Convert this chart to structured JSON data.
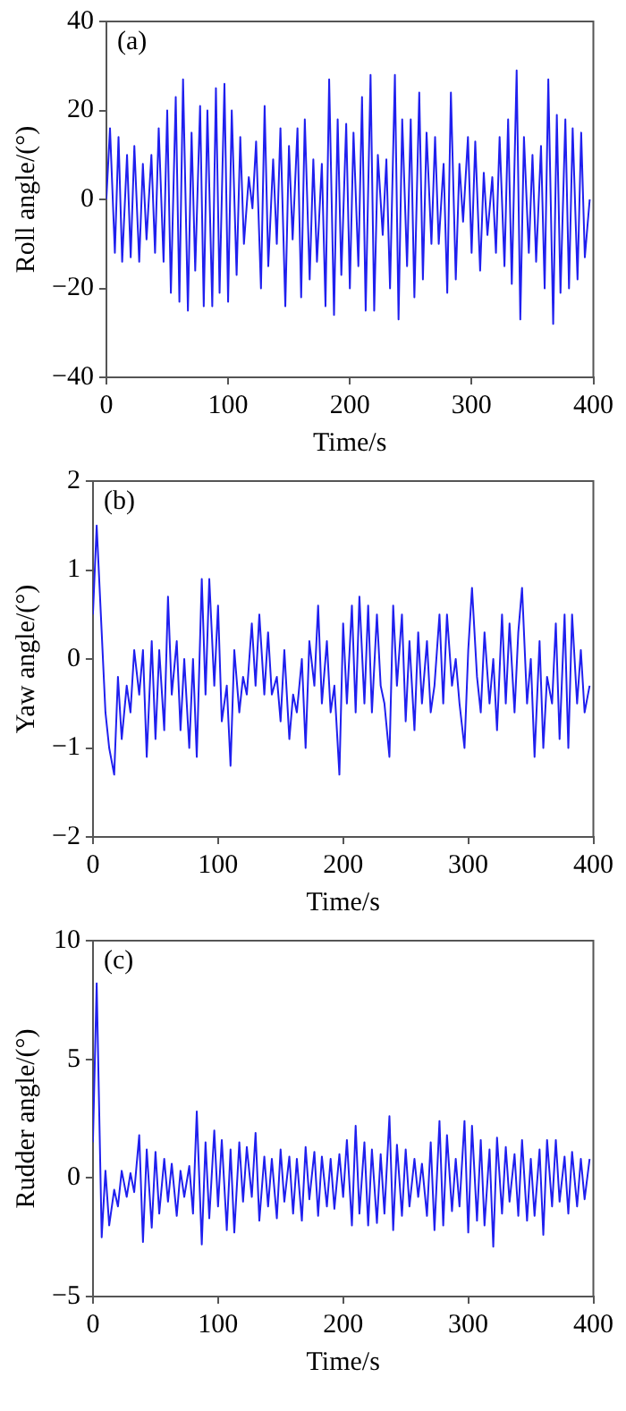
{
  "chart_data": [
    {
      "type": "line",
      "annotations": [
        "(a)"
      ],
      "xlabel": "Time/s",
      "ylabel": "Roll angle/(°)",
      "color": "#1f1fef",
      "marker": "none",
      "line_style": "solid",
      "grid": false,
      "xlim": [
        0,
        400
      ],
      "xticks": [
        0,
        100,
        200,
        300,
        400
      ],
      "ylim": [
        -40,
        40
      ],
      "yticks": [
        -40,
        -20,
        0,
        20,
        40
      ],
      "x": [
        0,
        3,
        7,
        10,
        13,
        17,
        20,
        23,
        27,
        30,
        33,
        37,
        40,
        43,
        47,
        50,
        53,
        57,
        60,
        63,
        67,
        70,
        73,
        77,
        80,
        83,
        87,
        90,
        93,
        97,
        100,
        103,
        107,
        110,
        113,
        117,
        120,
        123,
        127,
        130,
        133,
        137,
        140,
        143,
        147,
        150,
        153,
        157,
        160,
        163,
        167,
        170,
        173,
        177,
        180,
        183,
        187,
        190,
        193,
        197,
        200,
        203,
        207,
        210,
        213,
        217,
        220,
        223,
        227,
        230,
        233,
        237,
        240,
        243,
        247,
        250,
        253,
        257,
        260,
        263,
        267,
        270,
        273,
        277,
        280,
        283,
        287,
        290,
        293,
        297,
        300,
        303,
        307,
        310,
        313,
        317,
        320,
        323,
        327,
        330,
        333,
        337,
        340,
        343,
        347,
        350,
        353,
        357,
        360,
        363,
        367,
        370,
        373,
        377,
        380,
        383,
        387,
        390,
        393,
        397
      ],
      "values": [
        0,
        16,
        -12,
        14,
        -14,
        10,
        -13,
        12,
        -14,
        8,
        -9,
        10,
        -12,
        16,
        -14,
        20,
        -21,
        23,
        -23,
        27,
        -25,
        15,
        -16,
        21,
        -24,
        20,
        -24,
        25,
        -21,
        26,
        -23,
        20,
        -17,
        14,
        -10,
        5,
        -2,
        13,
        -20,
        21,
        -15,
        9,
        -10,
        16,
        -24,
        12,
        -9,
        16,
        -22,
        18,
        -18,
        9,
        -14,
        8,
        -24,
        27,
        -26,
        18,
        -17,
        17,
        -20,
        15,
        -15,
        23,
        -25,
        28,
        -25,
        10,
        -8,
        9,
        -20,
        28,
        -27,
        18,
        -15,
        18,
        -22,
        24,
        -18,
        15,
        -10,
        14,
        -10,
        8,
        -21,
        24,
        -18,
        8,
        -5,
        14,
        -12,
        13,
        -16,
        6,
        -8,
        5,
        -12,
        14,
        -15,
        18,
        -19,
        29,
        -27,
        14,
        -12,
        10,
        -14,
        12,
        -20,
        27,
        -28,
        19,
        -21,
        18,
        -20,
        16,
        -18,
        15,
        -13,
        0
      ]
    },
    {
      "type": "line",
      "annotations": [
        "(b)"
      ],
      "xlabel": "Time/s",
      "ylabel": "Yaw angle/(°)",
      "color": "#1f1fef",
      "marker": "none",
      "line_style": "solid",
      "grid": false,
      "xlim": [
        0,
        400
      ],
      "xticks": [
        0,
        100,
        200,
        300,
        400
      ],
      "ylim": [
        -2,
        2
      ],
      "yticks": [
        -2,
        -1,
        0,
        1,
        2
      ],
      "x": [
        0,
        3,
        7,
        10,
        13,
        17,
        20,
        23,
        27,
        30,
        33,
        37,
        40,
        43,
        47,
        50,
        53,
        57,
        60,
        63,
        67,
        70,
        73,
        77,
        80,
        83,
        87,
        90,
        93,
        97,
        100,
        103,
        107,
        110,
        113,
        117,
        120,
        123,
        127,
        130,
        133,
        137,
        140,
        143,
        147,
        150,
        153,
        157,
        160,
        163,
        167,
        170,
        173,
        177,
        180,
        183,
        187,
        190,
        193,
        197,
        200,
        203,
        207,
        210,
        213,
        217,
        220,
        223,
        227,
        230,
        233,
        237,
        240,
        243,
        247,
        250,
        253,
        257,
        260,
        263,
        267,
        270,
        273,
        277,
        280,
        283,
        287,
        290,
        293,
        297,
        300,
        303,
        307,
        310,
        313,
        317,
        320,
        323,
        327,
        330,
        333,
        337,
        340,
        343,
        347,
        350,
        353,
        357,
        360,
        363,
        367,
        370,
        373,
        377,
        380,
        383,
        387,
        390,
        393,
        397
      ],
      "values": [
        0.5,
        1.5,
        0.3,
        -0.6,
        -1.0,
        -1.3,
        -0.2,
        -0.9,
        -0.3,
        -0.6,
        0.1,
        -0.4,
        0.1,
        -1.1,
        0.2,
        -0.9,
        0.1,
        -0.8,
        0.7,
        -0.4,
        0.2,
        -0.8,
        0.0,
        -1.0,
        0.0,
        -1.1,
        0.9,
        -0.4,
        0.9,
        -0.3,
        0.6,
        -0.7,
        -0.3,
        -1.2,
        0.1,
        -0.6,
        -0.2,
        -0.4,
        0.4,
        -0.3,
        0.5,
        -0.4,
        0.3,
        -0.4,
        -0.2,
        -0.7,
        0.1,
        -0.9,
        -0.4,
        -0.6,
        0.0,
        -1.0,
        0.2,
        -0.3,
        0.6,
        -0.5,
        0.2,
        -0.6,
        -0.3,
        -1.3,
        0.4,
        -0.5,
        0.6,
        -0.6,
        0.7,
        -0.5,
        0.6,
        -0.6,
        0.5,
        -0.3,
        -0.5,
        -1.1,
        0.6,
        -0.3,
        0.5,
        -0.7,
        0.2,
        -0.8,
        0.3,
        -0.5,
        0.2,
        -0.6,
        -0.3,
        0.5,
        -0.5,
        0.5,
        -0.3,
        0.0,
        -0.5,
        -1.0,
        0.1,
        0.8,
        -0.2,
        -0.6,
        0.3,
        -0.5,
        0.0,
        -0.8,
        0.5,
        -0.5,
        0.4,
        -0.6,
        0.3,
        0.8,
        -0.5,
        0.0,
        -1.1,
        0.2,
        -1.0,
        -0.2,
        -0.5,
        0.4,
        -0.9,
        0.5,
        -1.0,
        0.5,
        -0.5,
        0.1,
        -0.6,
        -0.3
      ]
    },
    {
      "type": "line",
      "annotations": [
        "(c)"
      ],
      "xlabel": "Time/s",
      "ylabel": "Rudder angle/(°)",
      "color": "#1f1fef",
      "marker": "none",
      "line_style": "solid",
      "grid": false,
      "xlim": [
        0,
        400
      ],
      "xticks": [
        0,
        100,
        200,
        300,
        400
      ],
      "ylim": [
        -5,
        10
      ],
      "yticks": [
        -5,
        0,
        5,
        10
      ],
      "x": [
        0,
        3,
        7,
        10,
        13,
        17,
        20,
        23,
        27,
        30,
        33,
        37,
        40,
        43,
        47,
        50,
        53,
        57,
        60,
        63,
        67,
        70,
        73,
        77,
        80,
        83,
        87,
        90,
        93,
        97,
        100,
        103,
        107,
        110,
        113,
        117,
        120,
        123,
        127,
        130,
        133,
        137,
        140,
        143,
        147,
        150,
        153,
        157,
        160,
        163,
        167,
        170,
        173,
        177,
        180,
        183,
        187,
        190,
        193,
        197,
        200,
        203,
        207,
        210,
        213,
        217,
        220,
        223,
        227,
        230,
        233,
        237,
        240,
        243,
        247,
        250,
        253,
        257,
        260,
        263,
        267,
        270,
        273,
        277,
        280,
        283,
        287,
        290,
        293,
        297,
        300,
        303,
        307,
        310,
        313,
        317,
        320,
        323,
        327,
        330,
        333,
        337,
        340,
        343,
        347,
        350,
        353,
        357,
        360,
        363,
        367,
        370,
        373,
        377,
        380,
        383,
        387,
        390,
        393,
        397
      ],
      "values": [
        1.5,
        8.2,
        -2.5,
        0.3,
        -2.0,
        -0.5,
        -1.2,
        0.3,
        -0.8,
        0.2,
        -0.6,
        1.8,
        -2.7,
        1.2,
        -2.1,
        1.1,
        -1.5,
        0.8,
        -1.0,
        0.6,
        -1.6,
        0.3,
        -0.8,
        0.5,
        -1.5,
        2.8,
        -2.8,
        1.5,
        -1.7,
        2.0,
        -1.2,
        1.6,
        -2.2,
        1.2,
        -2.3,
        1.5,
        -1.0,
        1.3,
        -0.8,
        1.9,
        -1.8,
        0.9,
        -1.2,
        0.8,
        -1.7,
        1.2,
        -1.0,
        0.9,
        -1.5,
        0.8,
        -1.8,
        1.3,
        -0.9,
        1.1,
        -1.6,
        0.9,
        -1.2,
        0.8,
        -1.3,
        1.0,
        -0.8,
        1.6,
        -2.0,
        2.2,
        -1.5,
        1.5,
        -2.0,
        1.2,
        -1.9,
        1.0,
        -1.5,
        2.6,
        -2.2,
        1.4,
        -1.6,
        1.2,
        -1.2,
        0.8,
        -0.8,
        0.6,
        -1.6,
        1.5,
        -2.2,
        2.4,
        -2.0,
        1.8,
        -1.4,
        0.8,
        -1.2,
        2.4,
        -2.3,
        2.2,
        -1.8,
        1.6,
        -2.0,
        1.2,
        -2.9,
        1.7,
        -1.5,
        1.3,
        -1.0,
        1.0,
        -1.6,
        1.6,
        -1.8,
        0.8,
        -1.6,
        1.2,
        -2.4,
        1.6,
        -1.2,
        1.6,
        -1.0,
        0.9,
        -1.5,
        1.1,
        -1.2,
        0.8,
        -0.9,
        0.8
      ]
    }
  ]
}
